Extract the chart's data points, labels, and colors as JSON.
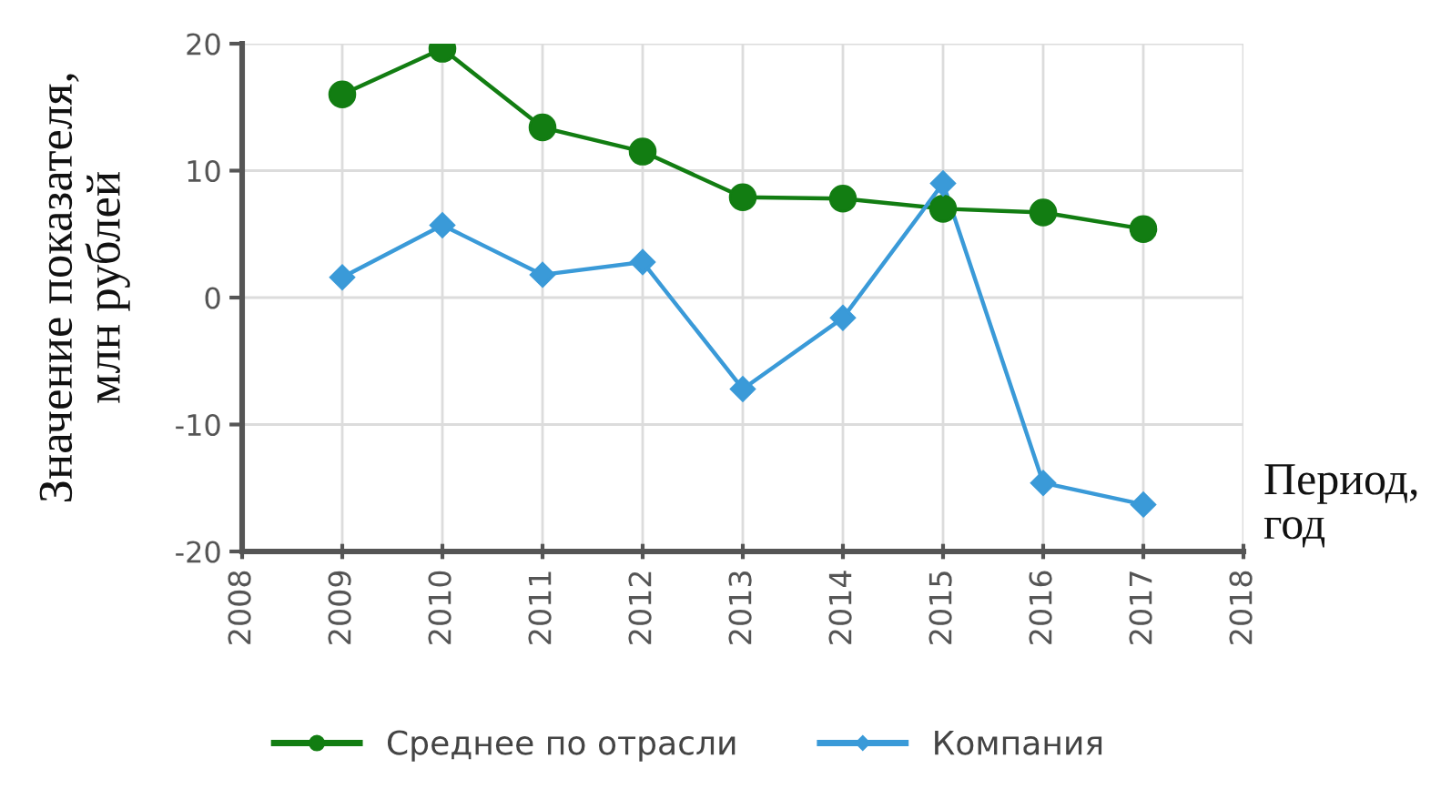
{
  "chart_data": {
    "type": "line",
    "xlabel": "Период,\nгод",
    "ylabel": "Значение показателя,\nмлн рублей",
    "x": [
      2009,
      2010,
      2011,
      2012,
      2013,
      2014,
      2015,
      2016,
      2017
    ],
    "series": [
      {
        "name": "Среднее по отрасли",
        "color": "#127d12",
        "marker": "circle",
        "values": [
          16.0,
          19.6,
          13.4,
          11.5,
          7.9,
          7.8,
          7.0,
          6.7,
          5.4
        ]
      },
      {
        "name": "Компания",
        "color": "#3a9ad8",
        "marker": "diamond",
        "values": [
          1.6,
          5.7,
          1.8,
          2.8,
          -7.2,
          -1.6,
          9.0,
          -14.6,
          -16.3
        ]
      }
    ],
    "xlim": [
      2008,
      2018
    ],
    "xticks": [
      2008,
      2009,
      2010,
      2011,
      2012,
      2013,
      2014,
      2015,
      2016,
      2017,
      2018
    ],
    "ylim": [
      -20,
      20
    ],
    "yticks": [
      -20,
      -10,
      0,
      10,
      20
    ],
    "grid": true,
    "legend": "bottom",
    "line_style": "solid"
  }
}
